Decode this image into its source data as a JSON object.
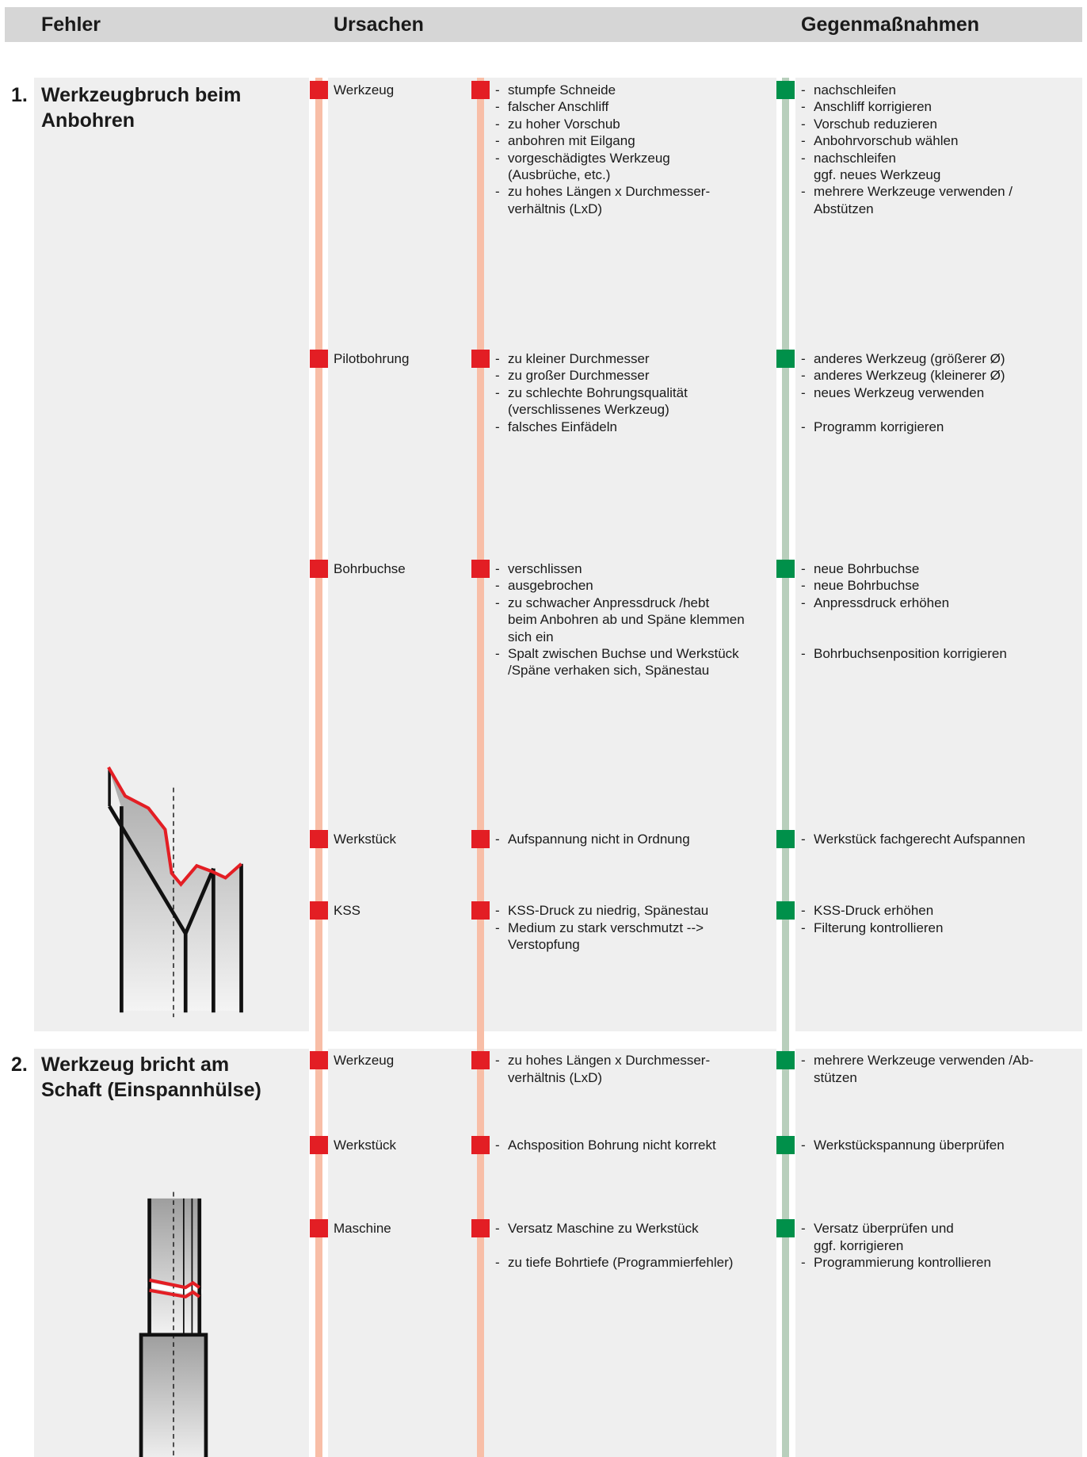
{
  "header": {
    "fehler": "Fehler",
    "ursachen": "Ursachen",
    "gegenmassnahmen": "Gegenmaßnahmen"
  },
  "bullet": "-",
  "sections": [
    {
      "number": "1.",
      "title": [
        "Werkzeugbruch beim",
        "Anbohren"
      ],
      "rows": [
        {
          "category": "Werkzeug",
          "items": [
            {
              "cause": [
                "stumpfe Schneide"
              ],
              "measure": [
                "nachschleifen"
              ]
            },
            {
              "cause": [
                "falscher Anschliff"
              ],
              "measure": [
                "Anschliff korrigieren"
              ]
            },
            {
              "cause": [
                "zu hoher Vorschub"
              ],
              "measure": [
                "Vorschub reduzieren"
              ]
            },
            {
              "cause": [
                "anbohren mit Eilgang"
              ],
              "measure": [
                "Anbohrvorschub wählen"
              ]
            },
            {
              "cause": [
                "vorgeschädigtes Werkzeug",
                "(Ausbrüche, etc.)"
              ],
              "measure": [
                "nachschleifen",
                "ggf. neues Werkzeug"
              ]
            },
            {
              "cause": [
                "zu hohes Längen x Durchmesser-",
                "verhältnis (LxD)"
              ],
              "measure": [
                "mehrere Werkzeuge verwenden /",
                "Abstützen"
              ]
            }
          ]
        },
        {
          "category": "Pilotbohrung",
          "items": [
            {
              "cause": [
                "zu kleiner Durchmesser"
              ],
              "measure": [
                "anderes Werkzeug (größerer Ø)"
              ]
            },
            {
              "cause": [
                "zu großer Durchmesser"
              ],
              "measure": [
                "anderes Werkzeug (kleinerer Ø)"
              ]
            },
            {
              "cause": [
                "zu schlechte Bohrungsqualität",
                "(verschlissenes Werkzeug)"
              ],
              "measure": [
                "neues Werkzeug verwenden"
              ]
            },
            {
              "cause": [
                "falsches Einfädeln"
              ],
              "measure": [
                "Programm korrigieren"
              ]
            }
          ]
        },
        {
          "category": "Bohrbuchse",
          "items": [
            {
              "cause": [
                "verschlissen"
              ],
              "measure": [
                "neue Bohrbuchse"
              ]
            },
            {
              "cause": [
                "ausgebrochen"
              ],
              "measure": [
                "neue Bohrbuchse"
              ]
            },
            {
              "cause": [
                "zu schwacher Anpressdruck /hebt",
                "beim Anbohren ab und Späne klemmen",
                "sich ein"
              ],
              "measure": [
                "Anpressdruck erhöhen"
              ]
            },
            {
              "cause": [
                "Spalt zwischen Buchse und Werkstück",
                "/Späne verhaken sich, Spänestau"
              ],
              "measure": [
                "Bohrbuchsenposition korrigieren"
              ]
            }
          ]
        },
        {
          "category": "Werkstück",
          "items": [
            {
              "cause": [
                "Aufspannung nicht in Ordnung"
              ],
              "measure": [
                "Werkstück fachgerecht Aufspannen"
              ]
            }
          ]
        },
        {
          "category": "KSS",
          "items": [
            {
              "cause": [
                "KSS-Druck zu niedrig, Spänestau"
              ],
              "measure": [
                "KSS-Druck erhöhen"
              ]
            },
            {
              "cause": [
                "Medium zu stark verschmutzt -->",
                "Verstopfung"
              ],
              "measure": [
                "Filterung kontrollieren"
              ]
            }
          ]
        }
      ]
    },
    {
      "number": "2.",
      "title": [
        "Werkzeug bricht am",
        "Schaft (Einspannhülse)"
      ],
      "rows": [
        {
          "category": "Werkzeug",
          "items": [
            {
              "cause": [
                "zu hohes Längen x Durchmesser-",
                "verhältnis (LxD)"
              ],
              "measure": [
                "mehrere Werkzeuge verwenden /Ab-",
                "stützen"
              ]
            }
          ]
        },
        {
          "category": "Werkstück",
          "items": [
            {
              "cause": [
                "Achsposition Bohrung nicht korrekt"
              ],
              "measure": [
                "Werkstückspannung überprüfen"
              ]
            }
          ]
        },
        {
          "category": "Maschine",
          "items": [
            {
              "cause": [
                "Versatz Maschine zu Werkstück"
              ],
              "measure": [
                "Versatz überprüfen und",
                "ggf. korrigieren"
              ]
            },
            {
              "cause": [
                "zu tiefe Bohrtiefe (Programmierfehler)"
              ],
              "measure": [
                "Programmierung kontrollieren"
              ]
            }
          ]
        }
      ]
    }
  ]
}
